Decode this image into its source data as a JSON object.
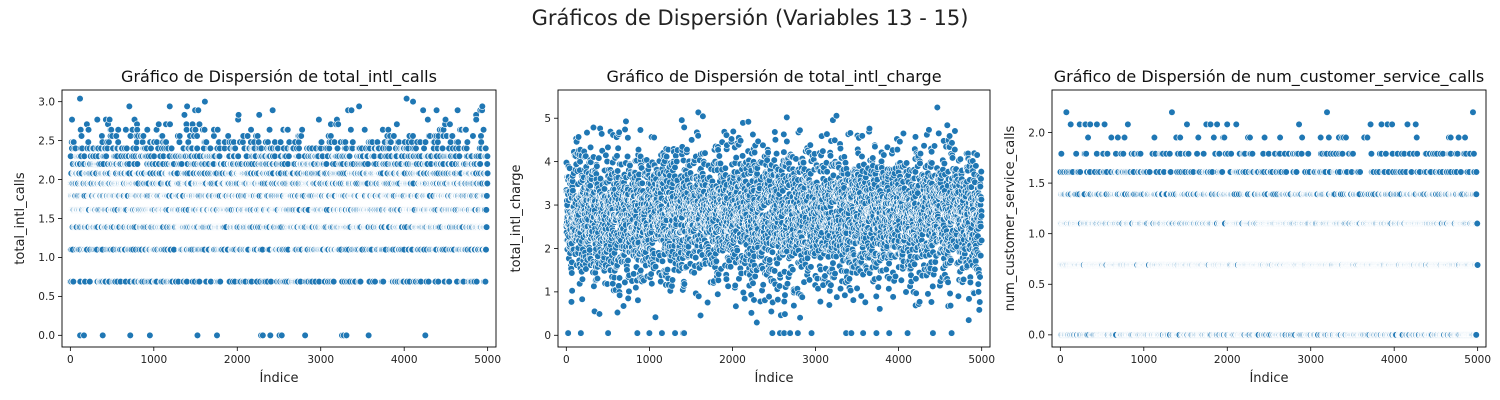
{
  "suptitle": "Gráficos de Dispersión (Variables 13 - 15)",
  "colors": {
    "point": "#1f77b4",
    "edge": "#ffffff"
  },
  "chart_data": [
    {
      "type": "scatter",
      "title": "Gráfico de Dispersión de total_intl_calls",
      "xlabel": "Índice",
      "ylabel": "total_intl_calls",
      "xlim": [
        -100,
        5100
      ],
      "ylim": [
        -0.15,
        3.15
      ],
      "xticks": [
        0,
        1000,
        2000,
        3000,
        4000,
        5000
      ],
      "yticks": [
        0.0,
        0.5,
        1.0,
        1.5,
        2.0,
        2.5,
        3.0
      ],
      "ytick_labels": [
        "0.0",
        "0.5",
        "1.0",
        "1.5",
        "2.0",
        "2.5",
        "3.0"
      ],
      "n_points": 5000,
      "level_values": [
        0.0,
        0.69,
        1.1,
        1.39,
        1.61,
        1.79,
        1.95,
        2.08,
        2.2,
        2.3,
        2.4,
        2.48,
        2.56,
        2.64,
        2.71,
        2.77,
        2.83,
        2.89,
        2.94,
        3.0,
        3.04
      ],
      "level_weights": [
        24,
        250,
        500,
        820,
        950,
        900,
        760,
        570,
        420,
        290,
        180,
        110,
        70,
        40,
        22,
        14,
        9,
        6,
        4,
        3,
        2
      ]
    },
    {
      "type": "scatter",
      "title": "Gráfico de Dispersión de total_intl_charge",
      "xlabel": "Índice",
      "ylabel": "total_intl_charge",
      "xlim": [
        -100,
        5100
      ],
      "ylim": [
        -0.27,
        5.65
      ],
      "xticks": [
        0,
        1000,
        2000,
        3000,
        4000,
        5000
      ],
      "yticks": [
        0,
        1,
        2,
        3,
        4,
        5
      ],
      "ytick_labels": [
        "0",
        "1",
        "2",
        "3",
        "4",
        "5"
      ],
      "n_points": 5000,
      "distribution": {
        "mean": 2.77,
        "sd": 0.75,
        "min": 0.0,
        "max": 5.4
      }
    },
    {
      "type": "scatter",
      "title": "Gráfico de Dispersión de num_customer_service_calls",
      "xlabel": "Índice",
      "ylabel": "num_customer_service_calls",
      "xlim": [
        -100,
        5100
      ],
      "ylim": [
        -0.12,
        2.42
      ],
      "xticks": [
        0,
        1000,
        2000,
        3000,
        4000,
        5000
      ],
      "yticks": [
        0.0,
        0.5,
        1.0,
        1.5,
        2.0
      ],
      "ytick_labels": [
        "0.0",
        "0.5",
        "1.0",
        "1.5",
        "2.0"
      ],
      "n_points": 5000,
      "level_values": [
        0.0,
        0.69,
        1.1,
        1.39,
        1.61,
        1.79,
        1.95,
        2.08,
        2.2,
        2.3
      ],
      "level_weights": [
        1020,
        1790,
        1130,
        640,
        250,
        100,
        40,
        15,
        4,
        2
      ]
    }
  ]
}
